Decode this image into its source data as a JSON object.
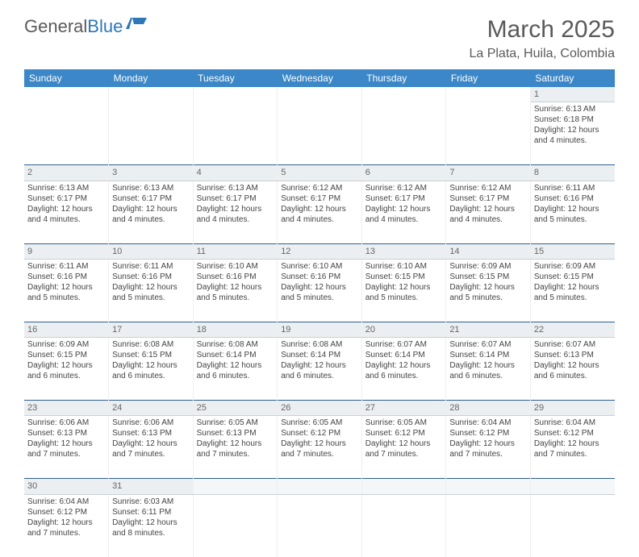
{
  "logo": {
    "text1": "General",
    "text2": "Blue"
  },
  "title": {
    "month": "March 2025",
    "location": "La Plata, Huila, Colombia"
  },
  "colors": {
    "header_bg": "#3b87c8",
    "daynum_bg": "#eceff1",
    "row_divider": "#2e5f8f"
  },
  "day_headers": [
    "Sunday",
    "Monday",
    "Tuesday",
    "Wednesday",
    "Thursday",
    "Friday",
    "Saturday"
  ],
  "weeks": [
    [
      null,
      null,
      null,
      null,
      null,
      null,
      {
        "n": "1",
        "sr": "6:13 AM",
        "ss": "6:18 PM",
        "dl": "12 hours and 4 minutes."
      }
    ],
    [
      {
        "n": "2",
        "sr": "6:13 AM",
        "ss": "6:17 PM",
        "dl": "12 hours and 4 minutes."
      },
      {
        "n": "3",
        "sr": "6:13 AM",
        "ss": "6:17 PM",
        "dl": "12 hours and 4 minutes."
      },
      {
        "n": "4",
        "sr": "6:13 AM",
        "ss": "6:17 PM",
        "dl": "12 hours and 4 minutes."
      },
      {
        "n": "5",
        "sr": "6:12 AM",
        "ss": "6:17 PM",
        "dl": "12 hours and 4 minutes."
      },
      {
        "n": "6",
        "sr": "6:12 AM",
        "ss": "6:17 PM",
        "dl": "12 hours and 4 minutes."
      },
      {
        "n": "7",
        "sr": "6:12 AM",
        "ss": "6:17 PM",
        "dl": "12 hours and 4 minutes."
      },
      {
        "n": "8",
        "sr": "6:11 AM",
        "ss": "6:16 PM",
        "dl": "12 hours and 5 minutes."
      }
    ],
    [
      {
        "n": "9",
        "sr": "6:11 AM",
        "ss": "6:16 PM",
        "dl": "12 hours and 5 minutes."
      },
      {
        "n": "10",
        "sr": "6:11 AM",
        "ss": "6:16 PM",
        "dl": "12 hours and 5 minutes."
      },
      {
        "n": "11",
        "sr": "6:10 AM",
        "ss": "6:16 PM",
        "dl": "12 hours and 5 minutes."
      },
      {
        "n": "12",
        "sr": "6:10 AM",
        "ss": "6:16 PM",
        "dl": "12 hours and 5 minutes."
      },
      {
        "n": "13",
        "sr": "6:10 AM",
        "ss": "6:15 PM",
        "dl": "12 hours and 5 minutes."
      },
      {
        "n": "14",
        "sr": "6:09 AM",
        "ss": "6:15 PM",
        "dl": "12 hours and 5 minutes."
      },
      {
        "n": "15",
        "sr": "6:09 AM",
        "ss": "6:15 PM",
        "dl": "12 hours and 5 minutes."
      }
    ],
    [
      {
        "n": "16",
        "sr": "6:09 AM",
        "ss": "6:15 PM",
        "dl": "12 hours and 6 minutes."
      },
      {
        "n": "17",
        "sr": "6:08 AM",
        "ss": "6:15 PM",
        "dl": "12 hours and 6 minutes."
      },
      {
        "n": "18",
        "sr": "6:08 AM",
        "ss": "6:14 PM",
        "dl": "12 hours and 6 minutes."
      },
      {
        "n": "19",
        "sr": "6:08 AM",
        "ss": "6:14 PM",
        "dl": "12 hours and 6 minutes."
      },
      {
        "n": "20",
        "sr": "6:07 AM",
        "ss": "6:14 PM",
        "dl": "12 hours and 6 minutes."
      },
      {
        "n": "21",
        "sr": "6:07 AM",
        "ss": "6:14 PM",
        "dl": "12 hours and 6 minutes."
      },
      {
        "n": "22",
        "sr": "6:07 AM",
        "ss": "6:13 PM",
        "dl": "12 hours and 6 minutes."
      }
    ],
    [
      {
        "n": "23",
        "sr": "6:06 AM",
        "ss": "6:13 PM",
        "dl": "12 hours and 7 minutes."
      },
      {
        "n": "24",
        "sr": "6:06 AM",
        "ss": "6:13 PM",
        "dl": "12 hours and 7 minutes."
      },
      {
        "n": "25",
        "sr": "6:05 AM",
        "ss": "6:13 PM",
        "dl": "12 hours and 7 minutes."
      },
      {
        "n": "26",
        "sr": "6:05 AM",
        "ss": "6:12 PM",
        "dl": "12 hours and 7 minutes."
      },
      {
        "n": "27",
        "sr": "6:05 AM",
        "ss": "6:12 PM",
        "dl": "12 hours and 7 minutes."
      },
      {
        "n": "28",
        "sr": "6:04 AM",
        "ss": "6:12 PM",
        "dl": "12 hours and 7 minutes."
      },
      {
        "n": "29",
        "sr": "6:04 AM",
        "ss": "6:12 PM",
        "dl": "12 hours and 7 minutes."
      }
    ],
    [
      {
        "n": "30",
        "sr": "6:04 AM",
        "ss": "6:12 PM",
        "dl": "12 hours and 7 minutes."
      },
      {
        "n": "31",
        "sr": "6:03 AM",
        "ss": "6:11 PM",
        "dl": "12 hours and 8 minutes."
      },
      null,
      null,
      null,
      null,
      null
    ]
  ],
  "labels": {
    "sunrise": "Sunrise: ",
    "sunset": "Sunset: ",
    "daylight": "Daylight: "
  }
}
